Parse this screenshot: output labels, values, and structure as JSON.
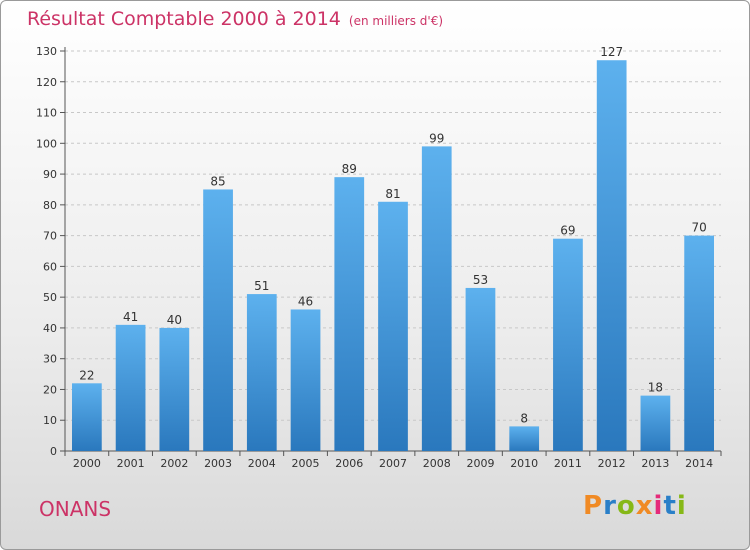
{
  "header": {
    "title": "Résultat Comptable 2000 à 2014",
    "subtitle": "(en milliers d'€)"
  },
  "footer": {
    "town": "ONANS",
    "logo": "Proxiti",
    "logo_colors": [
      "#f08a24",
      "#2a7fc8",
      "#86b817",
      "#f08a24",
      "#e52a7a",
      "#2a7fc8",
      "#86b817"
    ]
  },
  "chart_data": {
    "type": "bar",
    "categories": [
      "2000",
      "2001",
      "2002",
      "2003",
      "2004",
      "2005",
      "2006",
      "2007",
      "2008",
      "2009",
      "2010",
      "2011",
      "2012",
      "2013",
      "2014"
    ],
    "values": [
      22,
      41,
      40,
      85,
      51,
      46,
      89,
      81,
      99,
      53,
      8,
      69,
      127,
      18,
      70
    ],
    "title": "Résultat Comptable 2000 à 2014",
    "subtitle": "(en milliers d'€)",
    "xlabel": "",
    "ylabel": "",
    "ylim": [
      0,
      130
    ],
    "yticks": [
      0,
      10,
      20,
      30,
      40,
      50,
      60,
      70,
      80,
      90,
      100,
      110,
      120,
      130
    ],
    "grid": true,
    "data_labels": true,
    "bar_color": "#3d95d8"
  }
}
